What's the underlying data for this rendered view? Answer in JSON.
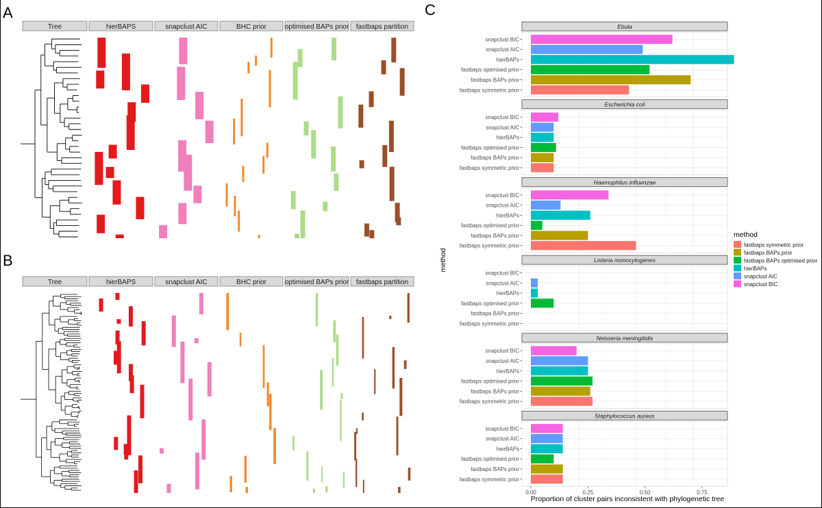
{
  "panel_labels": [
    "A",
    "B",
    "C"
  ],
  "strip_headers": [
    "Tree",
    "hierBAPS",
    "snapclust AIC",
    "BHC prior",
    "optimised BAPs prior",
    "fastbaps partition"
  ],
  "panel_c": {
    "xlabel": "Proportion of cluster pairs inconsistent with phylogenetic tree",
    "ylabel": "method",
    "legend_title": "method"
  },
  "colors": {
    "hierBAPS_cells": "#e31a1c",
    "snapclust_cells": "#f07fbc",
    "bhc_cells": "#f08a2c",
    "optimised_cells": "#addb8a",
    "fastbaps_cells": "#9a4f2a",
    "strip_fill": "#d9d9d9",
    "panel_bg": "#ffffff",
    "grid": "#ebebeb"
  },
  "chart_data": [
    {
      "type": "heatmap",
      "title": "",
      "panels": [
        "Tree",
        "hierBAPS",
        "snapclust AIC",
        "BHC prior",
        "optimised BAPs prior",
        "fastbaps partition"
      ]
    },
    {
      "type": "heatmap",
      "title": "",
      "panels": [
        "Tree",
        "hierBAPS",
        "snapclust AIC",
        "BHC prior",
        "optimised BAPs prior",
        "fastbaps partition"
      ]
    },
    {
      "type": "bar",
      "orientation": "horizontal",
      "xlabel": "Proportion of cluster pairs inconsistent with phylogenetic tree",
      "ylabel": "method",
      "xlim": [
        0,
        0.9
      ],
      "x_ticks": [
        "0.00",
        "0.25",
        "0.50",
        "0.75"
      ],
      "grid": true,
      "legend_position": "right",
      "methods": [
        "snapclust BIC",
        "snapclust AIC",
        "hierBAPs",
        "fastbaps optimised prior",
        "fastbaps BAPs prior",
        "fastbaps symmetric prior"
      ],
      "legend": [
        {
          "label": "fastbaps symmetric prior",
          "color": "#f8766d"
        },
        {
          "label": "fastbaps BAPs prior",
          "color": "#b79f00"
        },
        {
          "label": "fastbaps BAPs optimised prior",
          "color": "#00ba38"
        },
        {
          "label": "hierBAPs",
          "color": "#00bfc4"
        },
        {
          "label": "snapclust AIC",
          "color": "#619cff"
        },
        {
          "label": "snapclust BIC",
          "color": "#f564e3"
        }
      ],
      "method_colors": [
        "#f564e3",
        "#619cff",
        "#00bfc4",
        "#00ba38",
        "#b79f00",
        "#f8766d"
      ],
      "facets": [
        {
          "title": "Ebola",
          "values": [
            0.62,
            0.49,
            0.89,
            0.52,
            0.7,
            0.43
          ]
        },
        {
          "title": "Escherichia coli",
          "values": [
            0.12,
            0.1,
            0.1,
            0.11,
            0.1,
            0.1
          ]
        },
        {
          "title": "Haemophilus influenzae",
          "values": [
            0.34,
            0.13,
            0.26,
            0.05,
            0.25,
            0.46
          ]
        },
        {
          "title": "Listeria monocytogenes",
          "values": [
            0,
            0.03,
            0.03,
            0.1,
            0,
            0
          ]
        },
        {
          "title": "Neisseria meningitidis",
          "values": [
            0.2,
            0.25,
            0.25,
            0.27,
            0.26,
            0.27
          ]
        },
        {
          "title": "Staphylococcus aureus",
          "values": [
            0.14,
            0.14,
            0.14,
            0.1,
            0.14,
            0.14
          ]
        }
      ]
    }
  ]
}
